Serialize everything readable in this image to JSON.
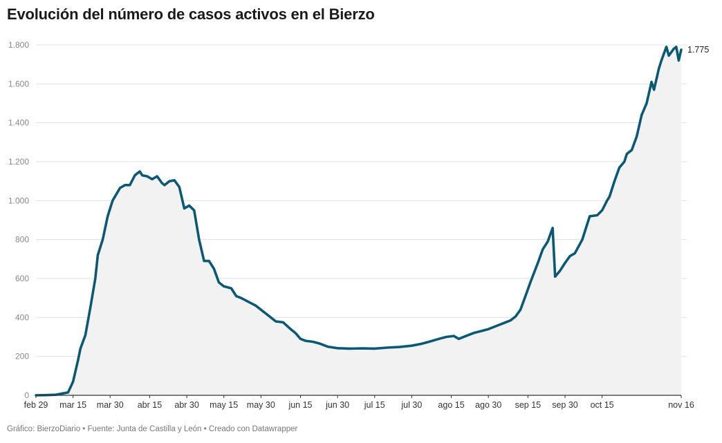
{
  "title": "Evolución del número de casos activos en el Bierzo",
  "footer": "Gráfico: BierzoDiario • Fuente: Junta de Castilla y León • Creado con Datawrapper",
  "colors": {
    "line": "#0b5874",
    "area": "#f2f2f2",
    "grid": "#e0e0e0",
    "axis": "#333333"
  },
  "chart_data": {
    "type": "area",
    "title": "Evolución del número de casos activos en el Bierzo",
    "xlabel": "",
    "ylabel": "",
    "x_start": "2020-02-29",
    "x_end": "2020-11-16",
    "ylim": [
      0,
      1800
    ],
    "y_ticks": [
      0,
      200,
      400,
      600,
      800,
      1000,
      1200,
      1400,
      1600,
      1800
    ],
    "y_tick_labels": [
      "0",
      "200",
      "400",
      "600",
      "800",
      "1.000",
      "1.200",
      "1.400",
      "1.600",
      "1.800"
    ],
    "x_ticks": [
      {
        "date": "2020-02-29",
        "label": "feb 29"
      },
      {
        "date": "2020-03-15",
        "label": "mar 15"
      },
      {
        "date": "2020-03-30",
        "label": "mar 30"
      },
      {
        "date": "2020-04-15",
        "label": "abr 15"
      },
      {
        "date": "2020-04-30",
        "label": "abr 30"
      },
      {
        "date": "2020-05-15",
        "label": "may 15"
      },
      {
        "date": "2020-05-30",
        "label": "may 30"
      },
      {
        "date": "2020-06-15",
        "label": "jun 15"
      },
      {
        "date": "2020-06-30",
        "label": "jun 30"
      },
      {
        "date": "2020-07-15",
        "label": "jul 15"
      },
      {
        "date": "2020-07-30",
        "label": "jul 30"
      },
      {
        "date": "2020-08-15",
        "label": "ago 15"
      },
      {
        "date": "2020-08-30",
        "label": "ago 30"
      },
      {
        "date": "2020-09-15",
        "label": "sep 15"
      },
      {
        "date": "2020-09-30",
        "label": "sep 30"
      },
      {
        "date": "2020-10-15",
        "label": "oct 15"
      },
      {
        "date": "2020-11-16",
        "label": "nov 16"
      }
    ],
    "grid": true,
    "end_label": "1.775",
    "series": [
      {
        "values": [
          [
            "2020-02-29",
            0
          ],
          [
            "2020-03-04",
            1
          ],
          [
            "2020-03-08",
            3
          ],
          [
            "2020-03-11",
            10
          ],
          [
            "2020-03-13",
            15
          ],
          [
            "2020-03-15",
            70
          ],
          [
            "2020-03-17",
            180
          ],
          [
            "2020-03-18",
            240
          ],
          [
            "2020-03-20",
            310
          ],
          [
            "2020-03-22",
            450
          ],
          [
            "2020-03-24",
            600
          ],
          [
            "2020-03-25",
            720
          ],
          [
            "2020-03-27",
            800
          ],
          [
            "2020-03-29",
            920
          ],
          [
            "2020-03-31",
            1000
          ],
          [
            "2020-04-03",
            1065
          ],
          [
            "2020-04-05",
            1080
          ],
          [
            "2020-04-07",
            1080
          ],
          [
            "2020-04-09",
            1130
          ],
          [
            "2020-04-11",
            1150
          ],
          [
            "2020-04-12",
            1130
          ],
          [
            "2020-04-14",
            1125
          ],
          [
            "2020-04-16",
            1110
          ],
          [
            "2020-04-18",
            1125
          ],
          [
            "2020-04-20",
            1090
          ],
          [
            "2020-04-21",
            1080
          ],
          [
            "2020-04-23",
            1100
          ],
          [
            "2020-04-25",
            1105
          ],
          [
            "2020-04-27",
            1070
          ],
          [
            "2020-04-29",
            960
          ],
          [
            "2020-05-01",
            975
          ],
          [
            "2020-05-03",
            950
          ],
          [
            "2020-05-05",
            800
          ],
          [
            "2020-05-07",
            690
          ],
          [
            "2020-05-09",
            690
          ],
          [
            "2020-05-11",
            650
          ],
          [
            "2020-05-13",
            580
          ],
          [
            "2020-05-15",
            560
          ],
          [
            "2020-05-18",
            550
          ],
          [
            "2020-05-20",
            510
          ],
          [
            "2020-05-22",
            500
          ],
          [
            "2020-05-25",
            480
          ],
          [
            "2020-05-28",
            460
          ],
          [
            "2020-05-31",
            430
          ],
          [
            "2020-06-03",
            400
          ],
          [
            "2020-06-05",
            380
          ],
          [
            "2020-06-08",
            375
          ],
          [
            "2020-06-11",
            340
          ],
          [
            "2020-06-13",
            320
          ],
          [
            "2020-06-15",
            290
          ],
          [
            "2020-06-17",
            280
          ],
          [
            "2020-06-20",
            275
          ],
          [
            "2020-06-23",
            265
          ],
          [
            "2020-06-26",
            250
          ],
          [
            "2020-06-30",
            242
          ],
          [
            "2020-07-05",
            240
          ],
          [
            "2020-07-10",
            241
          ],
          [
            "2020-07-15",
            240
          ],
          [
            "2020-07-20",
            245
          ],
          [
            "2020-07-25",
            248
          ],
          [
            "2020-07-30",
            255
          ],
          [
            "2020-08-03",
            265
          ],
          [
            "2020-08-06",
            275
          ],
          [
            "2020-08-10",
            290
          ],
          [
            "2020-08-13",
            300
          ],
          [
            "2020-08-16",
            305
          ],
          [
            "2020-08-18",
            290
          ],
          [
            "2020-08-21",
            305
          ],
          [
            "2020-08-24",
            320
          ],
          [
            "2020-08-27",
            330
          ],
          [
            "2020-08-30",
            340
          ],
          [
            "2020-09-02",
            355
          ],
          [
            "2020-09-05",
            370
          ],
          [
            "2020-09-08",
            385
          ],
          [
            "2020-09-10",
            405
          ],
          [
            "2020-09-12",
            440
          ],
          [
            "2020-09-14",
            510
          ],
          [
            "2020-09-16",
            580
          ],
          [
            "2020-09-19",
            680
          ],
          [
            "2020-09-21",
            750
          ],
          [
            "2020-09-23",
            790
          ],
          [
            "2020-09-25",
            860
          ],
          [
            "2020-09-26",
            610
          ],
          [
            "2020-09-28",
            640
          ],
          [
            "2020-09-30",
            680
          ],
          [
            "2020-10-02",
            715
          ],
          [
            "2020-10-04",
            730
          ],
          [
            "2020-10-07",
            800
          ],
          [
            "2020-10-10",
            920
          ],
          [
            "2020-10-13",
            925
          ],
          [
            "2020-10-15",
            950
          ],
          [
            "2020-10-17",
            1000
          ],
          [
            "2020-10-18",
            1020
          ],
          [
            "2020-10-20",
            1100
          ],
          [
            "2020-10-22",
            1170
          ],
          [
            "2020-10-24",
            1200
          ],
          [
            "2020-10-25",
            1240
          ],
          [
            "2020-10-27",
            1260
          ],
          [
            "2020-10-29",
            1330
          ],
          [
            "2020-10-31",
            1440
          ],
          [
            "2020-11-02",
            1500
          ],
          [
            "2020-11-04",
            1610
          ],
          [
            "2020-11-05",
            1570
          ],
          [
            "2020-11-07",
            1680
          ],
          [
            "2020-11-08",
            1720
          ],
          [
            "2020-11-10",
            1790
          ],
          [
            "2020-11-11",
            1745
          ],
          [
            "2020-11-13",
            1780
          ],
          [
            "2020-11-14",
            1790
          ],
          [
            "2020-11-15",
            1720
          ],
          [
            "2020-11-16",
            1775
          ]
        ]
      }
    ]
  }
}
